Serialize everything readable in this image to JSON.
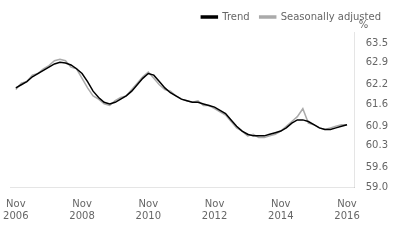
{
  "chart_data": {
    "type": "line",
    "ylabel": "%",
    "x": [
      2006.917,
      2007.083,
      2007.25,
      2007.417,
      2007.583,
      2007.75,
      2007.917,
      2008.083,
      2008.25,
      2008.417,
      2008.583,
      2008.75,
      2008.917,
      2009.083,
      2009.25,
      2009.417,
      2009.583,
      2009.75,
      2009.917,
      2010.083,
      2010.25,
      2010.417,
      2010.583,
      2010.75,
      2010.917,
      2011.083,
      2011.25,
      2011.417,
      2011.583,
      2011.75,
      2011.917,
      2012.083,
      2012.25,
      2012.417,
      2012.583,
      2012.75,
      2012.917,
      2013.083,
      2013.25,
      2013.417,
      2013.583,
      2013.75,
      2013.917,
      2014.083,
      2014.25,
      2014.417,
      2014.583,
      2014.75,
      2014.917,
      2015.083,
      2015.25,
      2015.417,
      2015.583,
      2015.75,
      2015.917,
      2016.083,
      2016.25,
      2016.417,
      2016.583,
      2016.75,
      2016.917
    ],
    "series": [
      {
        "name": "Trend",
        "color": "#000000",
        "values": [
          62.1,
          62.2,
          62.3,
          62.45,
          62.55,
          62.65,
          62.75,
          62.85,
          62.9,
          62.88,
          62.82,
          62.7,
          62.55,
          62.3,
          62.0,
          61.8,
          61.65,
          61.6,
          61.65,
          61.75,
          61.85,
          62.0,
          62.2,
          62.4,
          62.55,
          62.5,
          62.3,
          62.1,
          61.95,
          61.85,
          61.75,
          61.7,
          61.65,
          61.65,
          61.6,
          61.55,
          61.5,
          61.4,
          61.3,
          61.1,
          60.9,
          60.75,
          60.65,
          60.6,
          60.6,
          60.6,
          60.65,
          60.7,
          60.75,
          60.85,
          61.0,
          61.1,
          61.1,
          61.05,
          60.95,
          60.85,
          60.8,
          60.8,
          60.85,
          60.9,
          60.95
        ]
      },
      {
        "name": "Seasonally adjusted",
        "color": "#aaaaaa",
        "values": [
          62.05,
          62.25,
          62.3,
          62.5,
          62.55,
          62.7,
          62.8,
          62.95,
          63.0,
          62.95,
          62.75,
          62.7,
          62.4,
          62.1,
          61.85,
          61.75,
          61.6,
          61.55,
          61.7,
          61.8,
          61.85,
          62.05,
          62.25,
          62.45,
          62.6,
          62.4,
          62.2,
          62.05,
          62.0,
          61.85,
          61.75,
          61.7,
          61.65,
          61.7,
          61.55,
          61.55,
          61.45,
          61.35,
          61.25,
          61.05,
          60.85,
          60.75,
          60.6,
          60.65,
          60.55,
          60.55,
          60.6,
          60.65,
          60.75,
          60.9,
          61.05,
          61.2,
          61.45,
          61.0,
          60.95,
          60.85,
          60.8,
          60.85,
          60.9,
          60.95,
          60.95
        ]
      }
    ],
    "xlim": [
      2006.75,
      2017.15
    ],
    "xticks": [
      {
        "value": 2006.917,
        "label": "Nov\n2006"
      },
      {
        "value": 2008.917,
        "label": "Nov\n2008"
      },
      {
        "value": 2010.917,
        "label": "Nov\n2010"
      },
      {
        "value": 2012.917,
        "label": "Nov\n2012"
      },
      {
        "value": 2014.917,
        "label": "Nov\n2014"
      },
      {
        "value": 2016.917,
        "label": "Nov\n2016"
      }
    ],
    "ylim": [
      59.0,
      63.85
    ],
    "yticks": [
      {
        "value": 59.0,
        "label": "59.0"
      },
      59.6,
      60.3,
      60.9,
      61.6,
      62.2,
      62.9,
      63.5
    ],
    "grid": false,
    "legend": "upper right"
  }
}
